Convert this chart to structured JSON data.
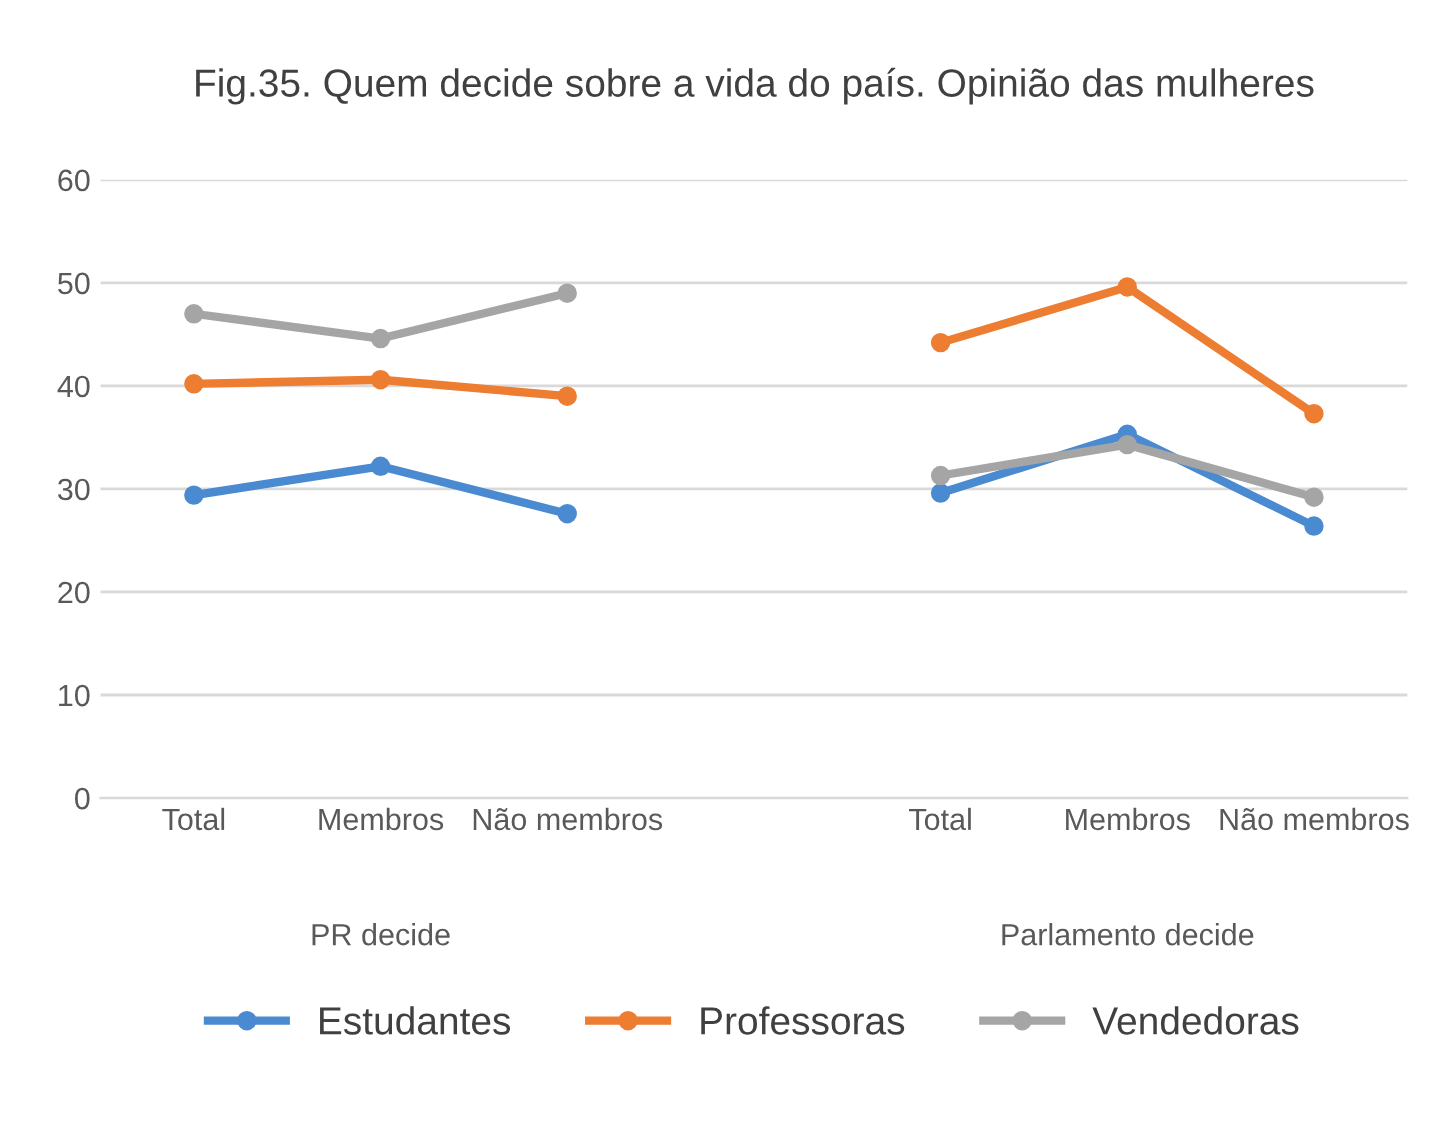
{
  "chart_data": {
    "type": "line",
    "title": "Fig.35. Quem decide sobre a vida do país. Opinião das mulheres",
    "categories": [
      "Total",
      "Membros",
      "Não membros",
      null,
      "Total",
      "Membros",
      "Não membros"
    ],
    "series": [
      {
        "name": "Estudantes",
        "color": "#4a8ad0",
        "values": [
          29.4,
          32.2,
          27.6,
          null,
          29.6,
          35.3,
          26.4
        ]
      },
      {
        "name": "Professoras",
        "color": "#ed7d31",
        "values": [
          40.2,
          40.6,
          39.0,
          null,
          44.2,
          49.6,
          37.3
        ]
      },
      {
        "name": "Vendedoras",
        "color": "#a5a5a5",
        "values": [
          47.0,
          44.6,
          49.0,
          null,
          31.3,
          34.3,
          29.2
        ]
      }
    ],
    "annotations": [
      "PR decide",
      "Parlamento decide"
    ],
    "ylim": [
      0,
      60
    ],
    "yticks": [
      0,
      10,
      20,
      30,
      40,
      50,
      60
    ],
    "grid": "y",
    "legend": "bottom",
    "marker": "circle",
    "line_style": "solid"
  }
}
